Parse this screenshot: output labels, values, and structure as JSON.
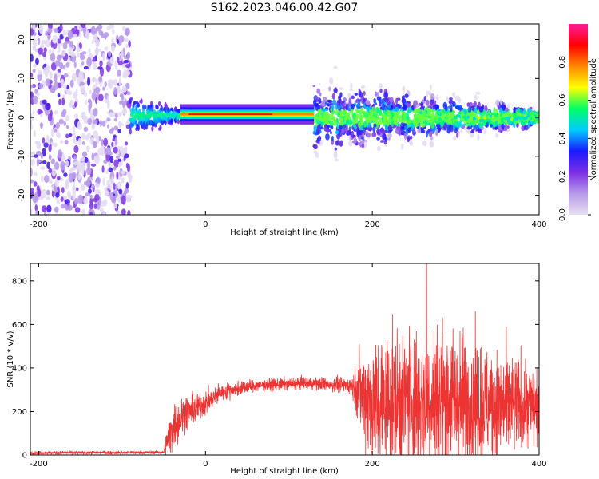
{
  "figure": {
    "title": "S162.2023.046.00.42.G07"
  },
  "chart_data": [
    {
      "type": "heatmap",
      "xlabel": "Height of straight line (km)",
      "ylabel": "Frequency (Hz)",
      "xlim": [
        -210,
        400
      ],
      "ylim": [
        -25,
        24
      ],
      "x_ticks": [
        -200,
        0,
        200,
        400
      ],
      "y_ticks": [
        -20,
        -10,
        0,
        10,
        20
      ],
      "grid": false,
      "colorbar": {
        "label": "Normalized spectral amplitude",
        "range": [
          0,
          1
        ],
        "ticks": [
          "0.0",
          "0.2",
          "0.4",
          "0.6",
          "0.8"
        ],
        "colors": [
          "#e6e0f0",
          "#b79ae9",
          "#7c2ee6",
          "#1a1aff",
          "#00ccff",
          "#00ff66",
          "#ffff00",
          "#ff8800",
          "#ff0000",
          "#ff1a9a"
        ]
      },
      "regions": [
        {
          "name": "noise",
          "x": [
            -210,
            -90
          ],
          "freq_spread_hz": 24,
          "amplitude": 0.15
        },
        {
          "name": "onset",
          "x": [
            -90,
            -30
          ],
          "center_hz": 0.5,
          "freq_spread_hz": 5,
          "amplitude": 0.5
        },
        {
          "name": "stable",
          "x": [
            -30,
            130
          ],
          "center_hz": 0.8,
          "freq_spread_hz": 1.5,
          "amplitude": 0.9
        },
        {
          "name": "scintillation",
          "x": [
            130,
            400
          ],
          "center_hz": 0,
          "freq_spread_hz": 10,
          "amplitude": 0.35
        }
      ]
    },
    {
      "type": "line",
      "xlabel": "Height of straight line (km)",
      "ylabel": "SNR (10 * v/v)",
      "xlim": [
        -210,
        400
      ],
      "ylim": [
        0,
        880
      ],
      "x_ticks": [
        -200,
        0,
        200,
        400
      ],
      "y_ticks": [
        0,
        200,
        400,
        600,
        800
      ],
      "grid": false,
      "series": [
        {
          "color": "#ee3333",
          "envelope": [
            {
              "x": -210,
              "mean": 10,
              "spread": 8
            },
            {
              "x": -50,
              "mean": 12,
              "spread": 8
            },
            {
              "x": -45,
              "mean": 80,
              "spread": 90
            },
            {
              "x": -35,
              "mean": 150,
              "spread": 110
            },
            {
              "x": -25,
              "mean": 190,
              "spread": 90
            },
            {
              "x": 0,
              "mean": 240,
              "spread": 60
            },
            {
              "x": 20,
              "mean": 290,
              "spread": 40
            },
            {
              "x": 60,
              "mean": 320,
              "spread": 30
            },
            {
              "x": 120,
              "mean": 330,
              "spread": 30
            },
            {
              "x": 175,
              "mean": 320,
              "spread": 40
            },
            {
              "x": 185,
              "mean": 300,
              "spread": 180
            },
            {
              "x": 200,
              "mean": 240,
              "spread": 340
            },
            {
              "x": 280,
              "mean": 260,
              "spread": 380
            },
            {
              "x": 350,
              "mean": 230,
              "spread": 280
            },
            {
              "x": 400,
              "mean": 220,
              "spread": 200
            }
          ],
          "peak": {
            "x": 265,
            "y": 880
          }
        }
      ]
    }
  ]
}
